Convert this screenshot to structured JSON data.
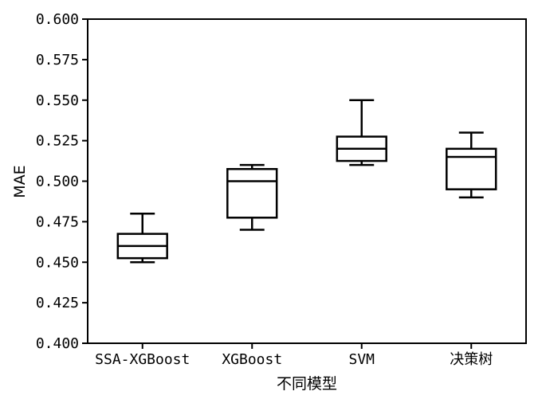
{
  "chart_data": {
    "type": "box",
    "title": "",
    "xlabel": "不同模型",
    "ylabel": "MAE",
    "ylim": [
      0.4,
      0.6
    ],
    "yticks": [
      0.4,
      0.425,
      0.45,
      0.475,
      0.5,
      0.525,
      0.55,
      0.575,
      0.6
    ],
    "ytick_labels": [
      "0.400",
      "0.425",
      "0.450",
      "0.475",
      "0.500",
      "0.525",
      "0.550",
      "0.575",
      "0.600"
    ],
    "grid": false,
    "categories": [
      "SSA-XGBoost",
      "XGBoost",
      "SVM",
      "决策树"
    ],
    "boxes": [
      {
        "whisker_low": 0.45,
        "q1": 0.4525,
        "median": 0.46,
        "q3": 0.4675,
        "whisker_high": 0.48
      },
      {
        "whisker_low": 0.47,
        "q1": 0.4775,
        "median": 0.5,
        "q3": 0.5075,
        "whisker_high": 0.51
      },
      {
        "whisker_low": 0.51,
        "q1": 0.5125,
        "median": 0.52,
        "q3": 0.5275,
        "whisker_high": 0.55
      },
      {
        "whisker_low": 0.49,
        "q1": 0.495,
        "median": 0.515,
        "q3": 0.52,
        "whisker_high": 0.53
      }
    ]
  }
}
